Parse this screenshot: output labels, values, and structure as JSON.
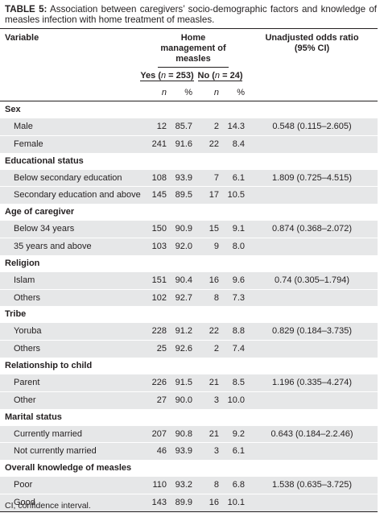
{
  "caption": {
    "label": "TABLE 5:",
    "text": "Association between caregivers’ socio-demographic factors and knowledge of measles infection with home treatment of measles."
  },
  "header": {
    "variable": "Variable",
    "home_mgmt": "Home management of measles",
    "odds": "Unadjusted odds ratio (95% CI)",
    "yes": "Yes (n = 253)",
    "no": "No (n = 24)",
    "n": "n",
    "pct": "%"
  },
  "groups": [
    {
      "title": "Sex",
      "rows": [
        {
          "label": "Male",
          "yn": "12",
          "yp": "85.7",
          "nn": "2",
          "np": "14.3",
          "or": "0.548 (0.115–2.605)"
        },
        {
          "label": "Female",
          "yn": "241",
          "yp": "91.6",
          "nn": "22",
          "np": "8.4",
          "or": ""
        }
      ]
    },
    {
      "title": "Educational status",
      "rows": [
        {
          "label": "Below secondary education",
          "yn": "108",
          "yp": "93.9",
          "nn": "7",
          "np": "6.1",
          "or": "1.809 (0.725–4.515)"
        },
        {
          "label": "Secondary education and above",
          "yn": "145",
          "yp": "89.5",
          "nn": "17",
          "np": "10.5",
          "or": ""
        }
      ]
    },
    {
      "title": "Age of caregiver",
      "rows": [
        {
          "label": "Below 34 years",
          "yn": "150",
          "yp": "90.9",
          "nn": "15",
          "np": "9.1",
          "or": "0.874 (0.368–2.072)"
        },
        {
          "label": "35 years and above",
          "yn": "103",
          "yp": "92.0",
          "nn": "9",
          "np": "8.0",
          "or": ""
        }
      ]
    },
    {
      "title": "Religion",
      "rows": [
        {
          "label": "Islam",
          "yn": "151",
          "yp": "90.4",
          "nn": "16",
          "np": "9.6",
          "or": "0.74 (0.305–1.794)"
        },
        {
          "label": "Others",
          "yn": "102",
          "yp": "92.7",
          "nn": "8",
          "np": "7.3",
          "or": ""
        }
      ]
    },
    {
      "title": "Tribe",
      "rows": [
        {
          "label": "Yoruba",
          "yn": "228",
          "yp": "91.2",
          "nn": "22",
          "np": "8.8",
          "or": "0.829 (0.184–3.735)"
        },
        {
          "label": "Others",
          "yn": "25",
          "yp": "92.6",
          "nn": "2",
          "np": "7.4",
          "or": ""
        }
      ]
    },
    {
      "title": "Relationship to child",
      "rows": [
        {
          "label": "Parent",
          "yn": "226",
          "yp": "91.5",
          "nn": "21",
          "np": "8.5",
          "or": "1.196 (0.335–4.274)"
        },
        {
          "label": "Other",
          "yn": "27",
          "yp": "90.0",
          "nn": "3",
          "np": "10.0",
          "or": ""
        }
      ]
    },
    {
      "title": "Marital status",
      "rows": [
        {
          "label": "Currently married",
          "yn": "207",
          "yp": "90.8",
          "nn": "21",
          "np": "9.2",
          "or": "0.643 (0.184–2.2.46)"
        },
        {
          "label": "Not currently married",
          "yn": "46",
          "yp": "93.9",
          "nn": "3",
          "np": "6.1",
          "or": ""
        }
      ]
    },
    {
      "title": "Overall knowledge of measles",
      "rows": [
        {
          "label": "Poor",
          "yn": "110",
          "yp": "93.2",
          "nn": "8",
          "np": "6.8",
          "or": "1.538 (0.635–3.725)"
        },
        {
          "label": "Good",
          "yn": "143",
          "yp": "89.9",
          "nn": "16",
          "np": "10.1",
          "or": ""
        }
      ]
    }
  ],
  "footnote": "CI, confidence interval.",
  "colors": {
    "shade": "#e6e7e8",
    "text": "#231f20"
  }
}
